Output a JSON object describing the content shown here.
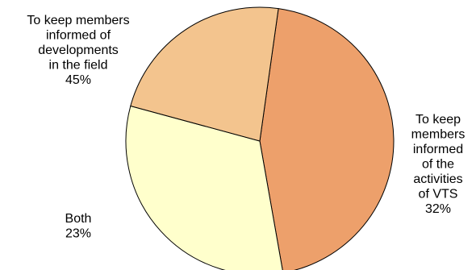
{
  "chart_data": {
    "type": "pie",
    "unit": "%",
    "slices": [
      {
        "label_lines": [
          "To keep members",
          "informed of",
          "developments",
          "in the field"
        ],
        "value": 45,
        "value_label": "45%",
        "color": "#EDA06B"
      },
      {
        "label_lines": [
          "To keep",
          "members",
          "informed",
          "of the",
          "activities",
          "of VTS"
        ],
        "value": 32,
        "value_label": "32%",
        "color": "#FFFFCC"
      },
      {
        "label_lines": [
          "Both"
        ],
        "value": 23,
        "value_label": "23%",
        "color": "#F3C48E"
      }
    ]
  }
}
